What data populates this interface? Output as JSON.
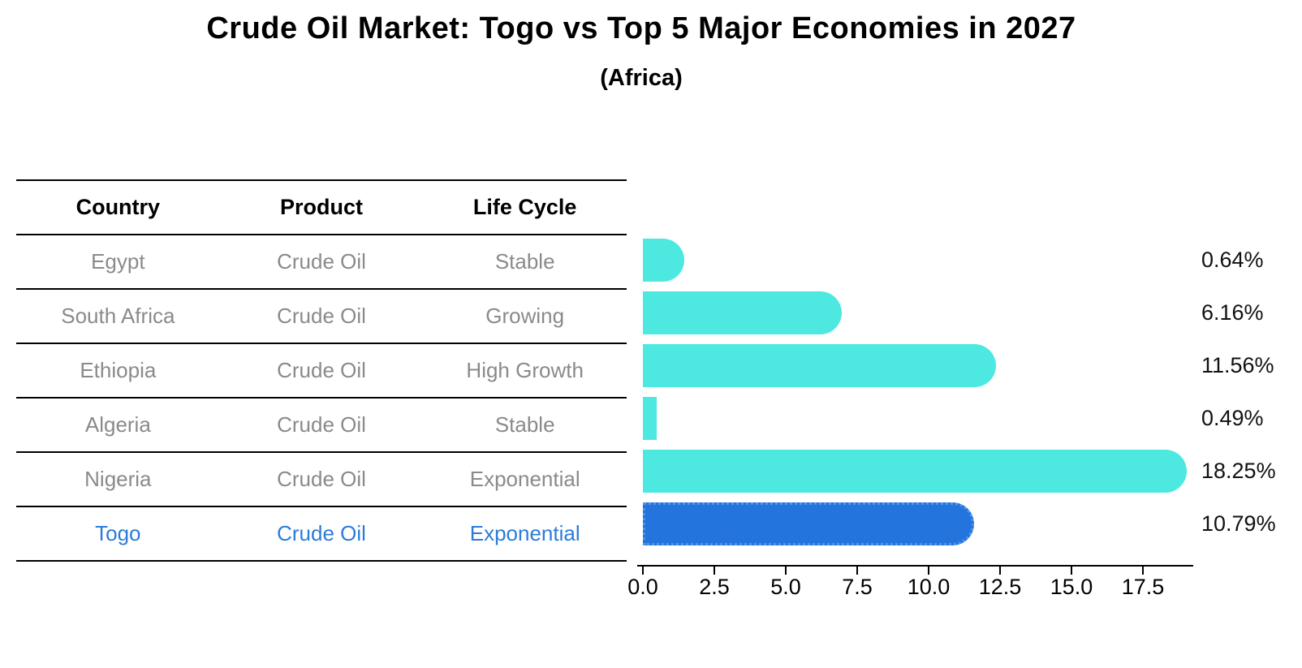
{
  "title": "Crude Oil Market: Togo vs Top 5 Major Economies in 2027",
  "subtitle": "(Africa)",
  "table": {
    "headers": [
      "Country",
      "Product",
      "Life Cycle"
    ],
    "rows": [
      {
        "country": "Egypt",
        "product": "Crude Oil",
        "life_cycle": "Stable",
        "highlighted": false
      },
      {
        "country": "South Africa",
        "product": "Crude Oil",
        "life_cycle": "Growing",
        "highlighted": false
      },
      {
        "country": "Ethiopia",
        "product": "Crude Oil",
        "life_cycle": "High Growth",
        "highlighted": false
      },
      {
        "country": "Algeria",
        "product": "Crude Oil",
        "life_cycle": "Stable",
        "highlighted": false
      },
      {
        "country": "Nigeria",
        "product": "Crude Oil",
        "life_cycle": "Exponential",
        "highlighted": false
      },
      {
        "country": "Togo",
        "product": "Crude Oil",
        "life_cycle": "Exponential",
        "highlighted": true
      }
    ]
  },
  "chart_data": {
    "type": "bar",
    "orientation": "horizontal",
    "title": "Crude Oil Market: Togo vs Top 5 Major Economies in 2027",
    "subtitle": "(Africa)",
    "categories": [
      "Egypt",
      "South Africa",
      "Ethiopia",
      "Algeria",
      "Nigeria",
      "Togo"
    ],
    "values": [
      0.64,
      6.16,
      11.56,
      0.49,
      18.25,
      10.79
    ],
    "value_labels": [
      "0.64%",
      "6.16%",
      "11.56%",
      "0.49%",
      "18.25%",
      "10.79%"
    ],
    "x_ticks": [
      0.0,
      2.5,
      5.0,
      7.5,
      10.0,
      12.5,
      15.0,
      17.5
    ],
    "x_tick_labels": [
      "0.0",
      "2.5",
      "5.0",
      "7.5",
      "10.0",
      "12.5",
      "15.0",
      "17.5"
    ],
    "xlim": [
      0,
      19.3
    ],
    "highlight_index": 5,
    "grid": false,
    "legend": null
  },
  "colors": {
    "bar_cyan": "#4DE8E0",
    "bar_blue": "#2374DC",
    "bar_blue_border": "#4F95EC",
    "highlight_text": "#2B7CD9",
    "row_text": "#8a8a8a",
    "axis": "#000000"
  }
}
